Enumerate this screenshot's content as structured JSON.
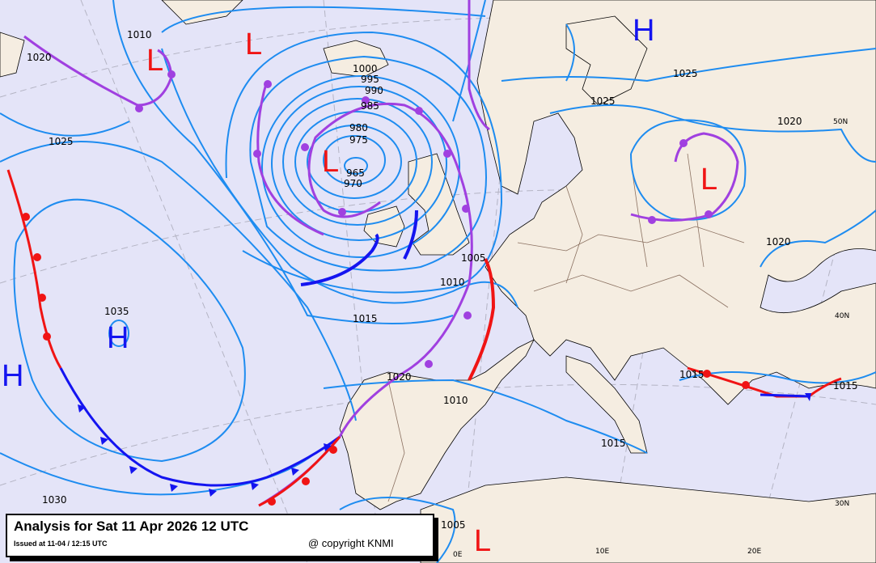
{
  "title": "Analysis for Sat 11 Apr 2026 12 UTC",
  "issued": "Issued at 11-04 / 12:15 UTC",
  "copyright": "@ copyright KNMI",
  "colors": {
    "sea": "#e4e4f8",
    "land": "#f5ede1",
    "isobar": "#1e8cf0",
    "high": "#1414f0",
    "low": "#f01414",
    "cold_front": "#1414f0",
    "warm_front": "#f01414",
    "occluded_front": "#a040e0"
  },
  "pressure_centers": [
    {
      "type": "H",
      "label": "H"
    },
    {
      "type": "L",
      "label": "L"
    },
    {
      "type": "L",
      "label": "L"
    },
    {
      "type": "L",
      "label": "L"
    },
    {
      "type": "L",
      "label": "L"
    },
    {
      "type": "H",
      "label": "H"
    },
    {
      "type": "H",
      "label": "H"
    },
    {
      "type": "L",
      "label": "L"
    }
  ],
  "isobar_labels": [
    "1010",
    "1020",
    "1000",
    "995",
    "990",
    "985",
    "980",
    "975",
    "965",
    "970",
    "1025",
    "1035",
    "1015",
    "1010",
    "1005",
    "1020",
    "1010",
    "1015",
    "1030",
    "1005",
    "1025",
    "1025",
    "1020",
    "1020",
    "1015",
    "1015"
  ],
  "grid_labels": [
    "50N",
    "40N",
    "30N",
    "0E",
    "10E",
    "20E"
  ]
}
